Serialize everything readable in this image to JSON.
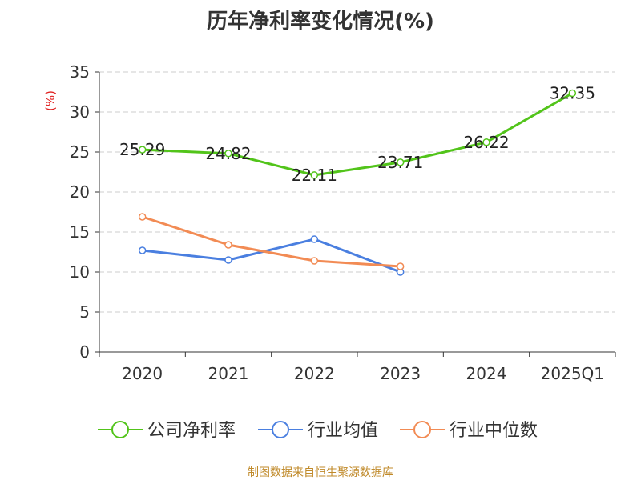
{
  "chart_data": {
    "type": "line",
    "title": "历年净利率变化情况(%)",
    "ylabel": "(%)",
    "xlabel": "",
    "categories": [
      "2020",
      "2021",
      "2022",
      "2023",
      "2024",
      "2025Q1"
    ],
    "ylim": [
      0,
      35
    ],
    "yticks": [
      0,
      5,
      10,
      15,
      20,
      25,
      30,
      35
    ],
    "grid": true,
    "legend_position": "bottom",
    "series": [
      {
        "name": "公司净利率",
        "color": "#52c41a",
        "values": [
          25.29,
          24.82,
          22.11,
          23.71,
          26.22,
          32.35
        ],
        "labels": [
          "25.29",
          "24.82",
          "22.11",
          "23.71",
          "26.22",
          "32.35"
        ]
      },
      {
        "name": "行业均值",
        "color": "#4a7fe0",
        "values": [
          12.7,
          11.5,
          14.1,
          10.0,
          null,
          null
        ]
      },
      {
        "name": "行业中位数",
        "color": "#f28b54",
        "values": [
          16.9,
          13.4,
          11.4,
          10.7,
          null,
          null
        ]
      }
    ]
  },
  "source": "制图数据来自恒生聚源数据库"
}
